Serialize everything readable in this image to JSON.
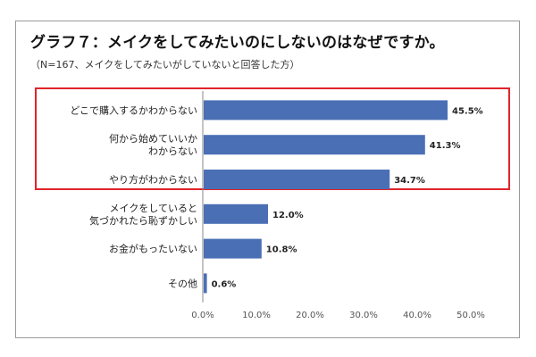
{
  "chart_data": {
    "type": "bar",
    "orientation": "horizontal",
    "title": "グラフ７：メイクをしてみたいのにしないのはなぜですか。",
    "subtitle": "（N=167、メイクをしてみたいがしていないと回答した方）",
    "categories": [
      [
        "どこで購入するかわからない"
      ],
      [
        "何から始めていいか",
        "わからない"
      ],
      [
        "やり方がわからない"
      ],
      [
        "メイクをしていると",
        "気づかれたら恥ずかしい"
      ],
      [
        "お金がもったいない"
      ],
      [
        "その他"
      ]
    ],
    "values": [
      45.5,
      41.3,
      34.7,
      12.0,
      10.8,
      0.6
    ],
    "value_labels": [
      "45.5%",
      "41.3%",
      "34.7%",
      "12.0%",
      "10.8%",
      "0.6%"
    ],
    "xlim": [
      0,
      50
    ],
    "ticks": [
      "0.0%",
      "10.0%",
      "20.0%",
      "30.0%",
      "40.0%",
      "50.0%"
    ],
    "bar_color": "#4a6fb5",
    "highlight_color": "#e0242a",
    "highlighted_categories": 3,
    "grid": false
  }
}
